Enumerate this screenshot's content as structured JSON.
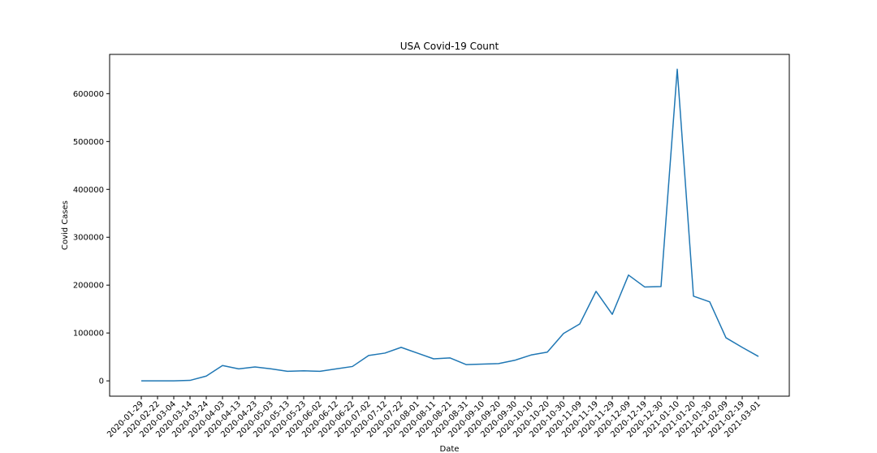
{
  "chart_data": {
    "type": "line",
    "title": "USA Covid-19 Count",
    "xlabel": "Date",
    "ylabel": "Covid Cases",
    "ylim": [
      -32000,
      682000
    ],
    "yticks": [
      0,
      100000,
      200000,
      300000,
      400000,
      500000,
      600000
    ],
    "grid": false,
    "line_color": "#1f77b4",
    "categories": [
      "2020-01-29",
      "2020-02-22",
      "2020-03-04",
      "2020-03-14",
      "2020-03-24",
      "2020-04-03",
      "2020-04-13",
      "2020-04-23",
      "2020-05-03",
      "2020-05-13",
      "2020-05-23",
      "2020-06-02",
      "2020-06-12",
      "2020-06-22",
      "2020-07-02",
      "2020-07-12",
      "2020-07-22",
      "2020-08-01",
      "2020-08-11",
      "2020-08-21",
      "2020-08-31",
      "2020-09-10",
      "2020-09-20",
      "2020-09-30",
      "2020-10-10",
      "2020-10-20",
      "2020-10-30",
      "2020-11-09",
      "2020-11-19",
      "2020-11-29",
      "2020-12-09",
      "2020-12-19",
      "2020-12-30",
      "2021-01-10",
      "2021-01-20",
      "2021-01-30",
      "2021-02-09",
      "2021-02-19",
      "2021-03-01"
    ],
    "series": [
      {
        "name": "Covid Cases",
        "values": [
          0,
          0,
          0,
          1000,
          10000,
          32000,
          25000,
          29000,
          25000,
          20000,
          21000,
          20000,
          25000,
          30000,
          53000,
          58000,
          70000,
          58000,
          46000,
          48000,
          34000,
          35000,
          36000,
          43000,
          54000,
          60000,
          99000,
          119000,
          187000,
          139000,
          221000,
          196000,
          197000,
          651000,
          177000,
          165000,
          90000,
          70000,
          51000
        ]
      }
    ]
  }
}
